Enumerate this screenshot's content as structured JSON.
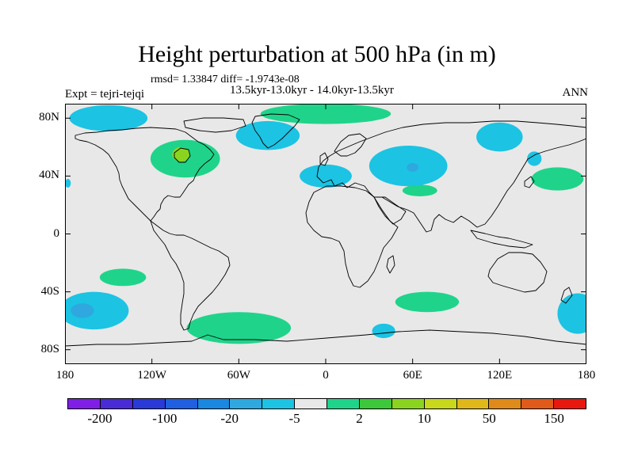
{
  "title": "Height perturbation at 500 hPa (in m)",
  "stats_line": "rmsd= 1.33847 diff= -1.9743e-08",
  "periods_line": "13.5kyr-13.0kyr - 14.0kyr-13.5kyr",
  "expt_label": "Expt = tejri-tejqi",
  "season_label": "ANN",
  "lat_ticks": [
    "80N",
    "40N",
    "0",
    "40S",
    "80S"
  ],
  "lat_values": [
    80,
    40,
    0,
    -40,
    -80
  ],
  "lon_ticks": [
    "180",
    "120W",
    "60W",
    "0",
    "60E",
    "120E",
    "180"
  ],
  "lon_values": [
    -180,
    -120,
    -60,
    0,
    60,
    120,
    180
  ],
  "colorbar": {
    "labels": [
      "-200",
      "-100",
      "-20",
      "-5",
      "2",
      "10",
      "50",
      "150"
    ],
    "colors": [
      "#7f1fe6",
      "#4a2cd6",
      "#2a3ad8",
      "#1f5fe0",
      "#1a87e0",
      "#2ea8de",
      "#1cc3e3",
      "#e8e8e8",
      "#1fd48a",
      "#3cc83a",
      "#8ad41f",
      "#c8d81a",
      "#e0b81a",
      "#e08a1a",
      "#e05a1a",
      "#e8180f"
    ]
  },
  "chart_data": {
    "type": "heatmap",
    "title": "Height perturbation at 500 hPa (in m)",
    "projection": "cylindrical-equidistant",
    "lon_range": [
      -180,
      180
    ],
    "lat_range": [
      -90,
      90
    ],
    "background_color": "#e8e8e8",
    "regions": [
      {
        "label": "2 to 10",
        "color": "#1fd48a",
        "lon": -97,
        "lat": 52,
        "rx": 24,
        "ry": 13
      },
      {
        "label": "10 to 50",
        "color": "#8ad41f",
        "lon": -100,
        "lat": 55,
        "rx": 6,
        "ry": 5
      },
      {
        "label": "2 to 10",
        "color": "#1fd48a",
        "lon": 0,
        "lat": 83,
        "rx": 45,
        "ry": 7
      },
      {
        "label": "2 to 10",
        "color": "#1fd48a",
        "lon": 160,
        "lat": 38,
        "rx": 18,
        "ry": 8
      },
      {
        "label": "2 to 10",
        "color": "#1fd48a",
        "lon": 65,
        "lat": 30,
        "rx": 12,
        "ry": 4
      },
      {
        "label": "2 to 10",
        "color": "#1fd48a",
        "lon": -140,
        "lat": -30,
        "rx": 16,
        "ry": 6
      },
      {
        "label": "2 to 10",
        "color": "#1fd48a",
        "lon": -60,
        "lat": -65,
        "rx": 36,
        "ry": 11
      },
      {
        "label": "2 to 10",
        "color": "#1fd48a",
        "lon": 70,
        "lat": -47,
        "rx": 22,
        "ry": 7
      },
      {
        "label": "-5 to -2",
        "color": "#1cc3e3",
        "lon": -150,
        "lat": 80,
        "rx": 27,
        "ry": 9
      },
      {
        "label": "-5 to -2",
        "color": "#1cc3e3",
        "lon": -40,
        "lat": 68,
        "rx": 22,
        "ry": 10
      },
      {
        "label": "-5 to -2",
        "color": "#1cc3e3",
        "lon": 57,
        "lat": 47,
        "rx": 27,
        "ry": 14
      },
      {
        "label": "-5 to -2",
        "color": "#1cc3e3",
        "lon": 0,
        "lat": 40,
        "rx": 18,
        "ry": 8
      },
      {
        "label": "-5 to -2",
        "color": "#1cc3e3",
        "lon": 120,
        "lat": 67,
        "rx": 16,
        "ry": 10
      },
      {
        "label": "-5 to -2",
        "color": "#1cc3e3",
        "lon": -160,
        "lat": -53,
        "rx": 24,
        "ry": 13
      },
      {
        "label": "-5 to -2",
        "color": "#1cc3e3",
        "lon": 174,
        "lat": -55,
        "rx": 14,
        "ry": 14
      },
      {
        "label": "-5 to -2",
        "color": "#1cc3e3",
        "lon": 40,
        "lat": -67,
        "rx": 8,
        "ry": 5
      },
      {
        "label": "-5 to -2",
        "color": "#1cc3e3",
        "lon": 144,
        "lat": 52,
        "rx": 5,
        "ry": 5
      },
      {
        "label": "-5 to -2",
        "color": "#1cc3e3",
        "lon": -178,
        "lat": 35,
        "rx": 2,
        "ry": 3
      },
      {
        "label": "-20 to -5",
        "color": "#2ea8de",
        "lon": -168,
        "lat": -53,
        "rx": 8,
        "ry": 5
      },
      {
        "label": "-20 to -5",
        "color": "#2ea8de",
        "lon": 60,
        "lat": 46,
        "rx": 4,
        "ry": 3
      }
    ]
  }
}
